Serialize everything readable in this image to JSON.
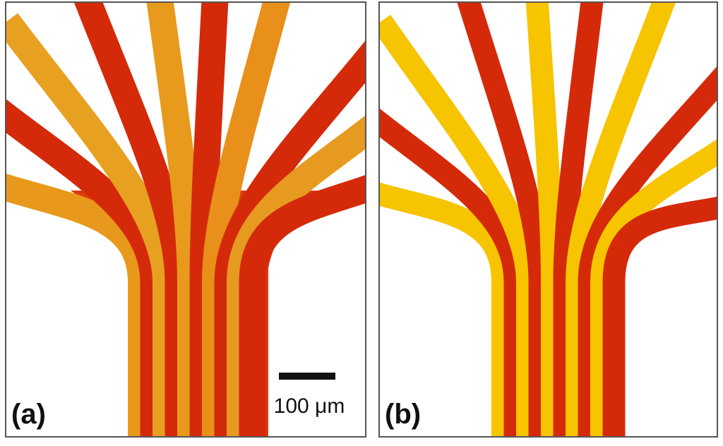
{
  "panels": [
    {
      "label": "(a)"
    },
    {
      "label": "(b)"
    }
  ],
  "scale_bar": {
    "label": "100 μm"
  }
}
